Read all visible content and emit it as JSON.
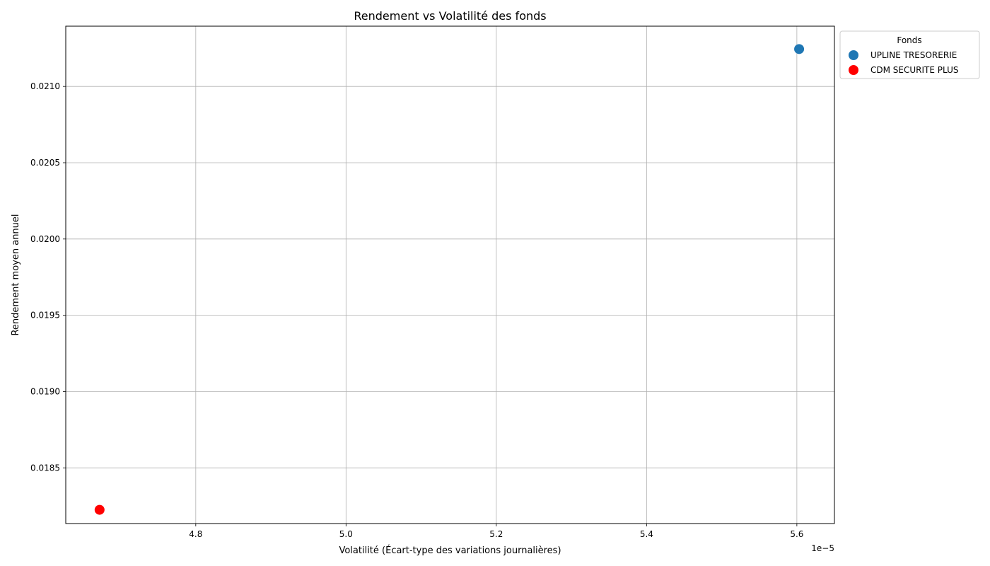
{
  "chart_data": {
    "type": "scatter",
    "title": "Rendement vs Volatilité des fonds",
    "xlabel": "Volatilité (Écart-type des variations journalières)",
    "ylabel": "Rendement moyen annuel",
    "x_offset_label": "1e−5",
    "xlim": [
      4.627e-05,
      5.65e-05
    ],
    "ylim": [
      0.018135,
      0.021395
    ],
    "x_ticks": [
      4.8e-05,
      5e-05,
      5.2e-05,
      5.4e-05,
      5.6e-05
    ],
    "x_tick_labels": [
      "4.8",
      "5.0",
      "5.2",
      "5.4",
      "5.6"
    ],
    "y_ticks": [
      0.0185,
      0.019,
      0.0195,
      0.02,
      0.0205,
      0.021
    ],
    "y_tick_labels": [
      "0.0185",
      "0.0190",
      "0.0195",
      "0.0200",
      "0.0205",
      "0.0210"
    ],
    "grid": true,
    "legend": {
      "title": "Fonds",
      "placement": "outside-top-right"
    },
    "series": [
      {
        "name": "UPLINE TRESORERIE",
        "color": "#1f77b4",
        "points": [
          {
            "x": 5.603e-05,
            "y": 0.021245
          }
        ]
      },
      {
        "name": "CDM SECURITE PLUS",
        "color": "#ff0000",
        "points": [
          {
            "x": 4.672e-05,
            "y": 0.018225
          }
        ]
      }
    ]
  }
}
